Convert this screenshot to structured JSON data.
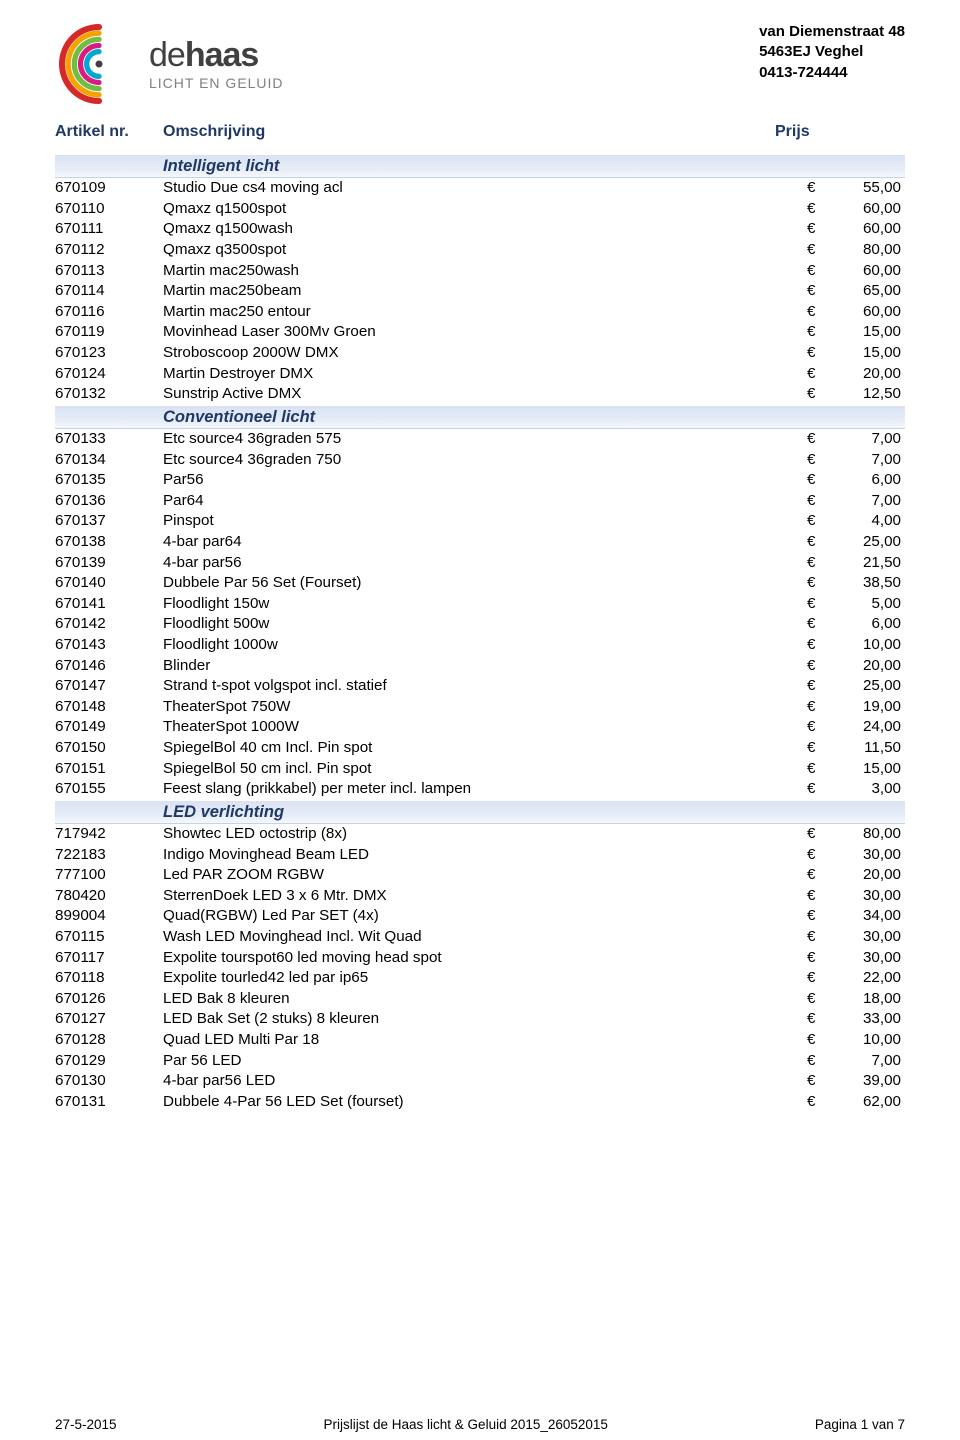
{
  "company": {
    "brand_de": "de",
    "brand_haas": "haas",
    "tagline": "LICHT EN GELUID",
    "address_line1": "van Diemenstraat 48",
    "address_line2": "5463EJ Veghel",
    "address_line3": "0413-724444"
  },
  "columns": {
    "c1": "Artikel nr.",
    "c2": "Omschrijving",
    "c3": "Prijs"
  },
  "sections": [
    {
      "title": "Intelligent licht",
      "rows": [
        {
          "a": "670109",
          "d": "Studio Due cs4 moving acl",
          "p": "55,00"
        },
        {
          "a": "670110",
          "d": "Qmaxz q1500spot",
          "p": "60,00"
        },
        {
          "a": "670111",
          "d": "Qmaxz q1500wash",
          "p": "60,00"
        },
        {
          "a": "670112",
          "d": "Qmaxz q3500spot",
          "p": "80,00"
        },
        {
          "a": "670113",
          "d": "Martin mac250wash",
          "p": "60,00"
        },
        {
          "a": "670114",
          "d": "Martin mac250beam",
          "p": "65,00"
        },
        {
          "a": "670116",
          "d": "Martin mac250 entour",
          "p": "60,00"
        },
        {
          "a": "670119",
          "d": "Movinhead Laser 300Mv Groen",
          "p": "15,00"
        },
        {
          "a": "670123",
          "d": "Stroboscoop 2000W DMX",
          "p": "15,00"
        },
        {
          "a": "670124",
          "d": "Martin Destroyer DMX",
          "p": "20,00"
        },
        {
          "a": "670132",
          "d": "Sunstrip Active DMX",
          "p": "12,50"
        }
      ]
    },
    {
      "title": "Conventioneel licht",
      "rows": [
        {
          "a": "670133",
          "d": "Etc source4 36graden 575",
          "p": "7,00"
        },
        {
          "a": "670134",
          "d": "Etc source4 36graden 750",
          "p": "7,00"
        },
        {
          "a": "670135",
          "d": "Par56",
          "p": "6,00"
        },
        {
          "a": "670136",
          "d": "Par64",
          "p": "7,00"
        },
        {
          "a": "670137",
          "d": "Pinspot",
          "p": "4,00"
        },
        {
          "a": "670138",
          "d": "4-bar par64",
          "p": "25,00"
        },
        {
          "a": "670139",
          "d": "4-bar par56",
          "p": "21,50"
        },
        {
          "a": "670140",
          "d": "Dubbele Par 56 Set (Fourset)",
          "p": "38,50"
        },
        {
          "a": "670141",
          "d": "Floodlight 150w",
          "p": "5,00"
        },
        {
          "a": "670142",
          "d": "Floodlight 500w",
          "p": "6,00"
        },
        {
          "a": "670143",
          "d": "Floodlight 1000w",
          "p": "10,00"
        },
        {
          "a": "670146",
          "d": "Blinder",
          "p": "20,00"
        },
        {
          "a": "670147",
          "d": "Strand t-spot volgspot incl. statief",
          "p": "25,00"
        },
        {
          "a": "670148",
          "d": "TheaterSpot 750W",
          "p": "19,00"
        },
        {
          "a": "670149",
          "d": "TheaterSpot 1000W",
          "p": "24,00"
        },
        {
          "a": "670150",
          "d": "SpiegelBol 40 cm Incl. Pin spot",
          "p": "11,50"
        },
        {
          "a": "670151",
          "d": "SpiegelBol 50 cm incl. Pin spot",
          "p": "15,00"
        },
        {
          "a": "670155",
          "d": "Feest slang (prikkabel) per meter incl. lampen",
          "p": "3,00"
        }
      ]
    },
    {
      "title": "LED verlichting",
      "rows": [
        {
          "a": "717942",
          "d": "Showtec LED octostrip (8x)",
          "p": "80,00"
        },
        {
          "a": "722183",
          "d": "Indigo Movinghead Beam LED",
          "p": "30,00"
        },
        {
          "a": "777100",
          "d": "Led PAR ZOOM RGBW",
          "p": "20,00"
        },
        {
          "a": "780420",
          "d": "SterrenDoek LED 3 x 6 Mtr. DMX",
          "p": "30,00"
        },
        {
          "a": "899004",
          "d": "Quad(RGBW) Led Par SET (4x)",
          "p": "34,00"
        },
        {
          "a": "670115",
          "d": "Wash LED Movinghead Incl. Wit Quad",
          "p": "30,00"
        },
        {
          "a": "670117",
          "d": "Expolite tourspot60 led moving head spot",
          "p": "30,00"
        },
        {
          "a": "670118",
          "d": "Expolite tourled42 led par ip65",
          "p": "22,00"
        },
        {
          "a": "670126",
          "d": "LED Bak 8 kleuren",
          "p": "18,00"
        },
        {
          "a": "670127",
          "d": "LED Bak Set (2 stuks) 8 kleuren",
          "p": "33,00"
        },
        {
          "a": "670128",
          "d": "Quad LED Multi Par 18",
          "p": "10,00"
        },
        {
          "a": "670129",
          "d": "Par 56 LED",
          "p": "7,00"
        },
        {
          "a": "670130",
          "d": "4-bar par56 LED",
          "p": "39,00"
        },
        {
          "a": "670131",
          "d": "Dubbele 4-Par 56 LED Set (fourset)",
          "p": "62,00"
        }
      ]
    }
  ],
  "currency": "€",
  "footer": {
    "left": "27-5-2015",
    "center": "Prijslijst de Haas licht & Geluid 2015_26052015",
    "right": "Pagina 1 van 7"
  },
  "style": {
    "heading_color": "#1f3864",
    "section_bg_from": "#d9e2f3",
    "section_bg_to": "#f5f8fc",
    "section_border": "#c5d2ea"
  }
}
